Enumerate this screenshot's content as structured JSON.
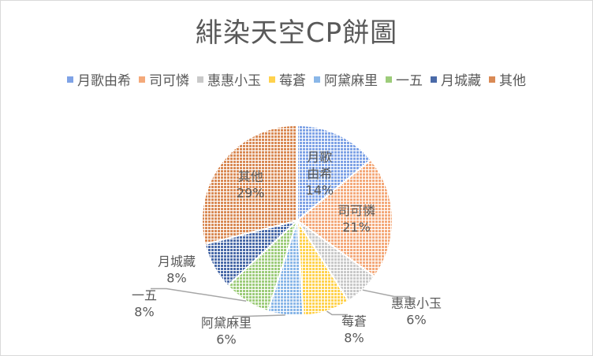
{
  "chart_data": {
    "type": "pie",
    "title": "緋染天空CP餅圖",
    "legend_position": "top",
    "slices": [
      {
        "label": "月歌由希",
        "label_lines": [
          "月歌",
          "由希"
        ],
        "value": 14,
        "value_label": "14%",
        "color": "#7fa3e6"
      },
      {
        "label": "司可憐",
        "label_lines": [
          "司可憐"
        ],
        "value": 21,
        "value_label": "21%",
        "color": "#f4a97a"
      },
      {
        "label": "惠惠小玉",
        "label_lines": [
          "惠惠小玉"
        ],
        "value": 6,
        "value_label": "6%",
        "color": "#c9c9c9"
      },
      {
        "label": "莓蒼",
        "label_lines": [
          "莓蒼"
        ],
        "value": 8,
        "value_label": "8%",
        "color": "#ffd24d"
      },
      {
        "label": "阿黛麻里",
        "label_lines": [
          "阿黛麻里"
        ],
        "value": 6,
        "value_label": "6%",
        "color": "#8ab7e8"
      },
      {
        "label": "一五",
        "label_lines": [
          "一五"
        ],
        "value": 8,
        "value_label": "8%",
        "color": "#9dcc7a"
      },
      {
        "label": "月城藏",
        "label_lines": [
          "月城藏"
        ],
        "value": 8,
        "value_label": "8%",
        "color": "#4a6aa8"
      },
      {
        "label": "其他",
        "label_lines": [
          "其他"
        ],
        "value": 29,
        "value_label": "29%",
        "color": "#d98a55"
      }
    ]
  }
}
